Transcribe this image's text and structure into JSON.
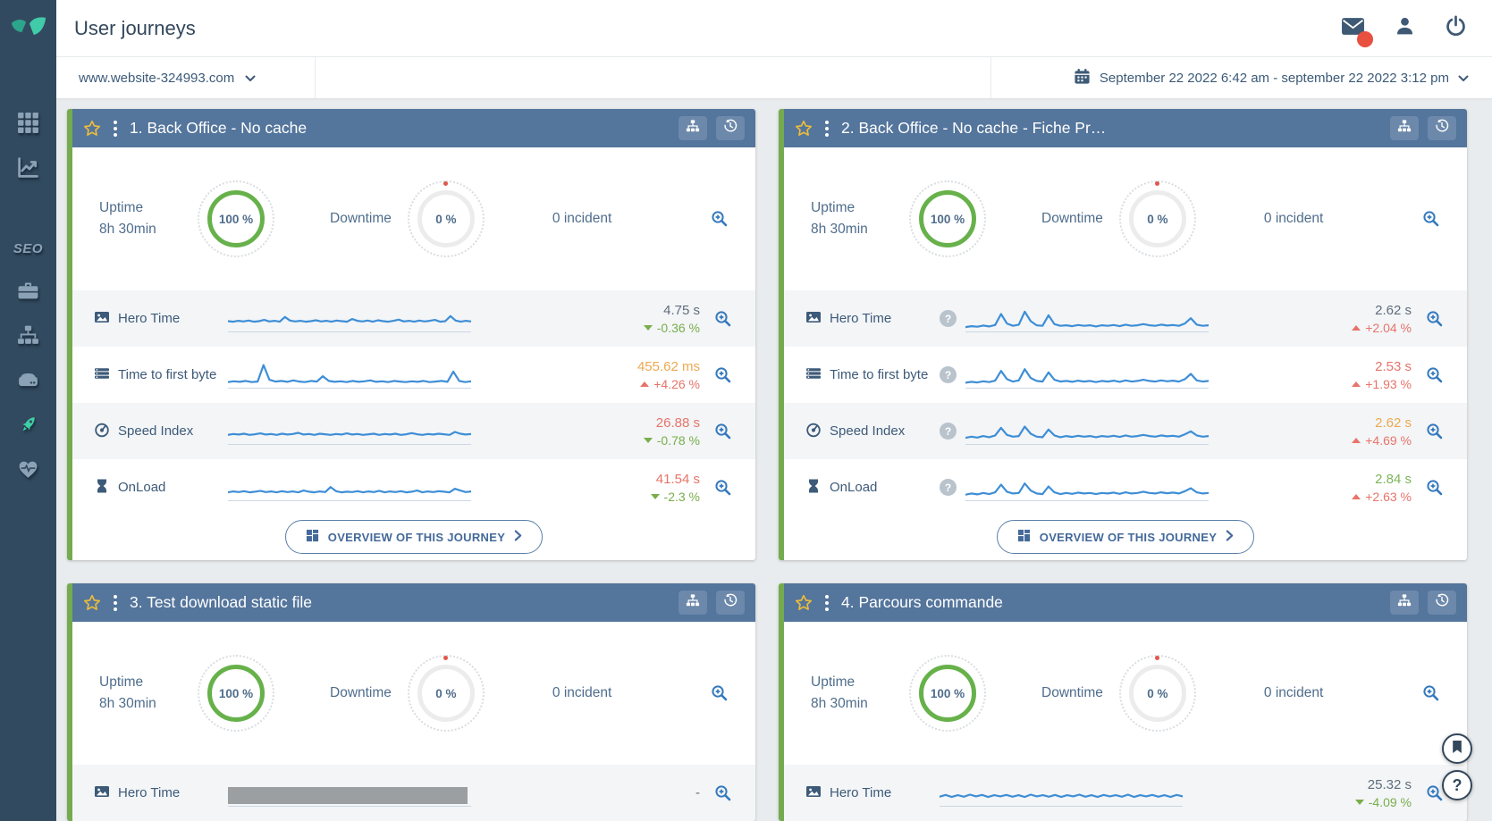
{
  "app": {
    "title": "User journeys"
  },
  "header_actions": {
    "mail": {
      "icon": "mail-icon",
      "badge": true
    },
    "account": {
      "icon": "user-icon"
    },
    "logout": {
      "icon": "power-icon"
    }
  },
  "sidebar": {
    "logo_icon": "leaf-logo-icon",
    "items": [
      {
        "id": "apps",
        "icon": "grid-icon"
      },
      {
        "id": "analytics",
        "icon": "line-chart-icon"
      },
      {
        "id": "seo",
        "label": "SEO"
      },
      {
        "id": "tools",
        "icon": "briefcase-icon"
      },
      {
        "id": "structure",
        "icon": "sitemap-icon"
      },
      {
        "id": "servers",
        "icon": "server-icon"
      },
      {
        "id": "user-journeys",
        "icon": "rocket-icon",
        "active": true
      },
      {
        "id": "health",
        "icon": "heartbeat-icon"
      }
    ]
  },
  "toolbar": {
    "site": "www.website-324993.com",
    "date_range": "September 22 2022 6:42 am - september 22 2022 3:12 pm"
  },
  "ui": {
    "help_glyph": "?"
  },
  "cards": [
    {
      "title": "1. Back Office - No cache",
      "uptime": {
        "label": "Uptime",
        "duration": "8h 30min",
        "value": "100 %"
      },
      "downtime": {
        "label": "Downtime",
        "value": "0 %"
      },
      "incidents": "0 incident",
      "overview_button": "OVERVIEW OF THIS JOURNEY",
      "show_footer": true,
      "metrics": [
        {
          "label": "Hero Time",
          "icon": "image-icon",
          "spark": "c1_hero",
          "value": "4.75 s",
          "value_tone": "neutral",
          "delta": "-0.36 %",
          "delta_dir": "down",
          "delta_tone": "good"
        },
        {
          "label": "Time to first byte",
          "icon": "stack-icon",
          "spark": "c1_ttfb",
          "value": "455.62 ms",
          "value_tone": "warn",
          "delta": "+4.26 %",
          "delta_dir": "up",
          "delta_tone": "bad"
        },
        {
          "label": "Speed Index",
          "icon": "gauge-icon",
          "spark": "c1_speed",
          "value": "26.88 s",
          "value_tone": "bad",
          "delta": "-0.78 %",
          "delta_dir": "down",
          "delta_tone": "good"
        },
        {
          "label": "OnLoad",
          "icon": "hourglass-icon",
          "spark": "c1_onload",
          "value": "41.54 s",
          "value_tone": "bad",
          "delta": "-2.3 %",
          "delta_dir": "down",
          "delta_tone": "good"
        }
      ]
    },
    {
      "title": "2. Back Office - No cache - Fiche Pr…",
      "uptime": {
        "label": "Uptime",
        "duration": "8h 30min",
        "value": "100 %"
      },
      "downtime": {
        "label": "Downtime",
        "value": "0 %"
      },
      "incidents": "0 incident",
      "overview_button": "OVERVIEW OF THIS JOURNEY",
      "show_footer": true,
      "metrics": [
        {
          "label": "Hero Time",
          "icon": "image-icon",
          "help": true,
          "spark": "c2_hero",
          "value": "2.62 s",
          "value_tone": "neutral",
          "delta": "+2.04 %",
          "delta_dir": "up",
          "delta_tone": "bad"
        },
        {
          "label": "Time to first byte",
          "icon": "stack-icon",
          "help": true,
          "spark": "c2_ttfb",
          "value": "2.53 s",
          "value_tone": "bad",
          "delta": "+1.93 %",
          "delta_dir": "up",
          "delta_tone": "bad"
        },
        {
          "label": "Speed Index",
          "icon": "gauge-icon",
          "help": true,
          "spark": "c2_speed",
          "value": "2.62 s",
          "value_tone": "warn",
          "delta": "+4.69 %",
          "delta_dir": "up",
          "delta_tone": "bad"
        },
        {
          "label": "OnLoad",
          "icon": "hourglass-icon",
          "help": true,
          "spark": "c2_onload",
          "value": "2.84 s",
          "value_tone": "good",
          "delta": "+2.63 %",
          "delta_dir": "up",
          "delta_tone": "bad"
        }
      ]
    },
    {
      "title": "3. Test download static file",
      "uptime": {
        "label": "Uptime",
        "duration": "8h 30min",
        "value": "100 %"
      },
      "downtime": {
        "label": "Downtime",
        "value": "0 %"
      },
      "incidents": "0 incident",
      "show_footer": false,
      "metrics": [
        {
          "label": "Hero Time",
          "icon": "image-icon",
          "no_data": true,
          "value": "-",
          "value_tone": "neutral"
        }
      ]
    },
    {
      "title": "4. Parcours commande",
      "uptime": {
        "label": "Uptime",
        "duration": "8h 30min",
        "value": "100 %"
      },
      "downtime": {
        "label": "Downtime",
        "value": "0 %"
      },
      "incidents": "0 incident",
      "show_footer": false,
      "metrics": [
        {
          "label": "Hero Time",
          "icon": "image-icon",
          "spark": "c4_hero",
          "value": "25.32 s",
          "value_tone": "neutral",
          "delta": "-4.09 %",
          "delta_dir": "down",
          "delta_tone": "good"
        }
      ]
    }
  ],
  "sparklines": {
    "c1_hero": [
      38,
      36,
      39,
      37,
      40,
      36,
      38,
      42,
      37,
      39,
      36,
      52,
      40,
      37,
      39,
      36,
      38,
      41,
      37,
      39,
      36,
      40,
      38,
      36,
      45,
      39,
      37,
      40,
      36,
      41,
      38,
      36,
      39,
      43,
      37,
      39,
      36,
      40,
      37,
      39,
      42,
      36,
      38,
      55,
      40,
      36,
      39,
      37
    ],
    "c1_ttfb": [
      22,
      25,
      23,
      26,
      22,
      24,
      80,
      30,
      24,
      26,
      23,
      28,
      24,
      22,
      26,
      24,
      42,
      26,
      23,
      25,
      22,
      26,
      23,
      25,
      28,
      23,
      25,
      22,
      26,
      24,
      22,
      25,
      23,
      26,
      22,
      24,
      26,
      23,
      58,
      26,
      22,
      25
    ],
    "c1_speed": [
      34,
      37,
      35,
      38,
      34,
      36,
      39,
      35,
      37,
      34,
      38,
      35,
      37,
      41,
      35,
      37,
      34,
      38,
      36,
      34,
      37,
      35,
      39,
      35,
      37,
      34,
      36,
      38,
      34,
      37,
      35,
      38,
      34,
      36,
      40,
      36,
      34,
      37,
      35,
      38,
      36,
      34,
      44,
      38,
      35,
      37
    ],
    "c1_onload": [
      30,
      33,
      31,
      34,
      30,
      32,
      35,
      31,
      33,
      30,
      34,
      31,
      33,
      30,
      36,
      32,
      30,
      33,
      31,
      48,
      34,
      30,
      32,
      31,
      34,
      30,
      33,
      31,
      35,
      30,
      33,
      31,
      34,
      30,
      32,
      36,
      30,
      33,
      31,
      34,
      32,
      30,
      42,
      36,
      31,
      33
    ],
    "c2_hero": [
      18,
      21,
      19,
      23,
      20,
      25,
      62,
      30,
      22,
      26,
      70,
      38,
      24,
      22,
      58,
      28,
      22,
      24,
      21,
      25,
      22,
      24,
      20,
      24,
      22,
      25,
      21,
      26,
      22,
      24,
      28,
      24,
      22,
      26,
      23,
      25,
      22,
      30,
      48,
      26,
      22,
      24
    ],
    "c2_ttfb": [
      20,
      23,
      21,
      25,
      22,
      27,
      60,
      32,
      24,
      28,
      66,
      36,
      26,
      24,
      55,
      30,
      24,
      26,
      23,
      27,
      24,
      26,
      22,
      26,
      24,
      27,
      23,
      28,
      24,
      26,
      30,
      26,
      24,
      28,
      25,
      27,
      24,
      32,
      50,
      28,
      24,
      26
    ],
    "c2_speed": [
      24,
      28,
      25,
      30,
      26,
      32,
      58,
      34,
      28,
      30,
      62,
      38,
      28,
      26,
      52,
      32,
      26,
      30,
      27,
      31,
      28,
      30,
      26,
      30,
      28,
      31,
      27,
      32,
      28,
      30,
      34,
      30,
      28,
      32,
      29,
      31,
      28,
      36,
      46,
      32,
      28,
      30
    ],
    "c2_onload": [
      22,
      26,
      23,
      28,
      24,
      30,
      56,
      32,
      26,
      28,
      60,
      36,
      26,
      24,
      50,
      30,
      24,
      28,
      25,
      29,
      26,
      28,
      24,
      28,
      26,
      29,
      25,
      30,
      26,
      28,
      32,
      28,
      26,
      30,
      27,
      29,
      26,
      34,
      44,
      30,
      26,
      28
    ],
    "c4_hero": [
      34,
      40,
      33,
      39,
      34,
      41,
      35,
      40,
      33,
      39,
      35,
      40,
      34,
      39,
      33,
      41,
      35,
      39,
      34,
      40,
      33,
      39,
      35,
      41,
      34,
      39,
      33,
      40,
      35,
      39,
      34,
      41,
      33,
      39,
      35,
      40,
      34,
      39,
      33,
      40,
      35
    ]
  },
  "floating": {
    "bookmark_icon": "bookmark-icon",
    "help_glyph": "?"
  },
  "colors": {
    "accent_teal": "#3ecfa5",
    "sidebar_bg": "#324a5f",
    "card_header": "#54759c",
    "card_border_green": "#74ab4f",
    "uptime_ring_green": "#67b14b",
    "sparkline_blue": "#3e8ed6",
    "good_green": "#79ae4b",
    "bad_red": "#e7746a",
    "warn_orange": "#eda94e",
    "star_gold": "#e9bb3c",
    "link_blue": "#3579bd",
    "notification_red": "#e8503f"
  }
}
